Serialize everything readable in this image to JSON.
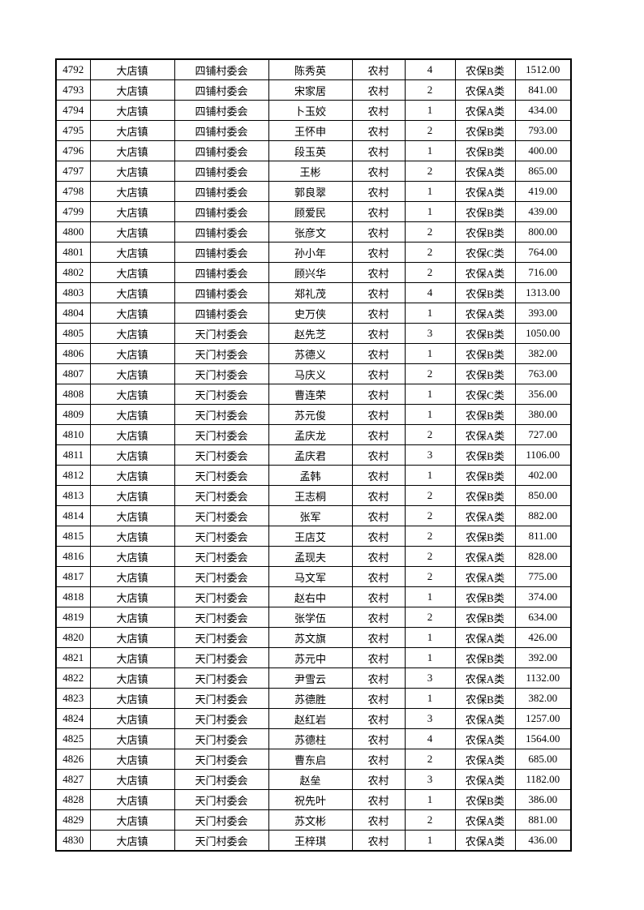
{
  "rows": [
    [
      "4792",
      "大店镇",
      "四铺村委会",
      "陈秀英",
      "农村",
      "4",
      "农保B类",
      "1512.00"
    ],
    [
      "4793",
      "大店镇",
      "四铺村委会",
      "宋家居",
      "农村",
      "2",
      "农保A类",
      "841.00"
    ],
    [
      "4794",
      "大店镇",
      "四铺村委会",
      "卜玉姣",
      "农村",
      "1",
      "农保A类",
      "434.00"
    ],
    [
      "4795",
      "大店镇",
      "四铺村委会",
      "王怀申",
      "农村",
      "2",
      "农保B类",
      "793.00"
    ],
    [
      "4796",
      "大店镇",
      "四铺村委会",
      "段玉英",
      "农村",
      "1",
      "农保B类",
      "400.00"
    ],
    [
      "4797",
      "大店镇",
      "四铺村委会",
      "王彬",
      "农村",
      "2",
      "农保A类",
      "865.00"
    ],
    [
      "4798",
      "大店镇",
      "四铺村委会",
      "郭良翠",
      "农村",
      "1",
      "农保A类",
      "419.00"
    ],
    [
      "4799",
      "大店镇",
      "四铺村委会",
      "顾爱民",
      "农村",
      "1",
      "农保B类",
      "439.00"
    ],
    [
      "4800",
      "大店镇",
      "四铺村委会",
      "张彦文",
      "农村",
      "2",
      "农保B类",
      "800.00"
    ],
    [
      "4801",
      "大店镇",
      "四铺村委会",
      "孙小年",
      "农村",
      "2",
      "农保C类",
      "764.00"
    ],
    [
      "4802",
      "大店镇",
      "四铺村委会",
      "顾兴华",
      "农村",
      "2",
      "农保A类",
      "716.00"
    ],
    [
      "4803",
      "大店镇",
      "四铺村委会",
      "郑礼茂",
      "农村",
      "4",
      "农保B类",
      "1313.00"
    ],
    [
      "4804",
      "大店镇",
      "四铺村委会",
      "史万侠",
      "农村",
      "1",
      "农保A类",
      "393.00"
    ],
    [
      "4805",
      "大店镇",
      "天门村委会",
      "赵先芝",
      "农村",
      "3",
      "农保B类",
      "1050.00"
    ],
    [
      "4806",
      "大店镇",
      "天门村委会",
      "苏德义",
      "农村",
      "1",
      "农保B类",
      "382.00"
    ],
    [
      "4807",
      "大店镇",
      "天门村委会",
      "马庆义",
      "农村",
      "2",
      "农保B类",
      "763.00"
    ],
    [
      "4808",
      "大店镇",
      "天门村委会",
      "曹连荣",
      "农村",
      "1",
      "农保C类",
      "356.00"
    ],
    [
      "4809",
      "大店镇",
      "天门村委会",
      "苏元俊",
      "农村",
      "1",
      "农保B类",
      "380.00"
    ],
    [
      "4810",
      "大店镇",
      "天门村委会",
      "孟庆龙",
      "农村",
      "2",
      "农保A类",
      "727.00"
    ],
    [
      "4811",
      "大店镇",
      "天门村委会",
      "孟庆君",
      "农村",
      "3",
      "农保B类",
      "1106.00"
    ],
    [
      "4812",
      "大店镇",
      "天门村委会",
      "孟韩",
      "农村",
      "1",
      "农保B类",
      "402.00"
    ],
    [
      "4813",
      "大店镇",
      "天门村委会",
      "王志桐",
      "农村",
      "2",
      "农保B类",
      "850.00"
    ],
    [
      "4814",
      "大店镇",
      "天门村委会",
      "张军",
      "农村",
      "2",
      "农保A类",
      "882.00"
    ],
    [
      "4815",
      "大店镇",
      "天门村委会",
      "王店艾",
      "农村",
      "2",
      "农保B类",
      "811.00"
    ],
    [
      "4816",
      "大店镇",
      "天门村委会",
      "孟现夫",
      "农村",
      "2",
      "农保A类",
      "828.00"
    ],
    [
      "4817",
      "大店镇",
      "天门村委会",
      "马文军",
      "农村",
      "2",
      "农保A类",
      "775.00"
    ],
    [
      "4818",
      "大店镇",
      "天门村委会",
      "赵右中",
      "农村",
      "1",
      "农保B类",
      "374.00"
    ],
    [
      "4819",
      "大店镇",
      "天门村委会",
      "张学伍",
      "农村",
      "2",
      "农保B类",
      "634.00"
    ],
    [
      "4820",
      "大店镇",
      "天门村委会",
      "苏文旗",
      "农村",
      "1",
      "农保A类",
      "426.00"
    ],
    [
      "4821",
      "大店镇",
      "天门村委会",
      "苏元中",
      "农村",
      "1",
      "农保B类",
      "392.00"
    ],
    [
      "4822",
      "大店镇",
      "天门村委会",
      "尹雪云",
      "农村",
      "3",
      "农保A类",
      "1132.00"
    ],
    [
      "4823",
      "大店镇",
      "天门村委会",
      "苏德胜",
      "农村",
      "1",
      "农保B类",
      "382.00"
    ],
    [
      "4824",
      "大店镇",
      "天门村委会",
      "赵红岩",
      "农村",
      "3",
      "农保A类",
      "1257.00"
    ],
    [
      "4825",
      "大店镇",
      "天门村委会",
      "苏德柱",
      "农村",
      "4",
      "农保A类",
      "1564.00"
    ],
    [
      "4826",
      "大店镇",
      "天门村委会",
      "曹东启",
      "农村",
      "2",
      "农保A类",
      "685.00"
    ],
    [
      "4827",
      "大店镇",
      "天门村委会",
      "赵垒",
      "农村",
      "3",
      "农保A类",
      "1182.00"
    ],
    [
      "4828",
      "大店镇",
      "天门村委会",
      "祝先叶",
      "农村",
      "1",
      "农保B类",
      "386.00"
    ],
    [
      "4829",
      "大店镇",
      "天门村委会",
      "苏文彬",
      "农村",
      "2",
      "农保A类",
      "881.00"
    ],
    [
      "4830",
      "大店镇",
      "天门村委会",
      "王梓琪",
      "农村",
      "1",
      "农保A类",
      "436.00"
    ]
  ]
}
